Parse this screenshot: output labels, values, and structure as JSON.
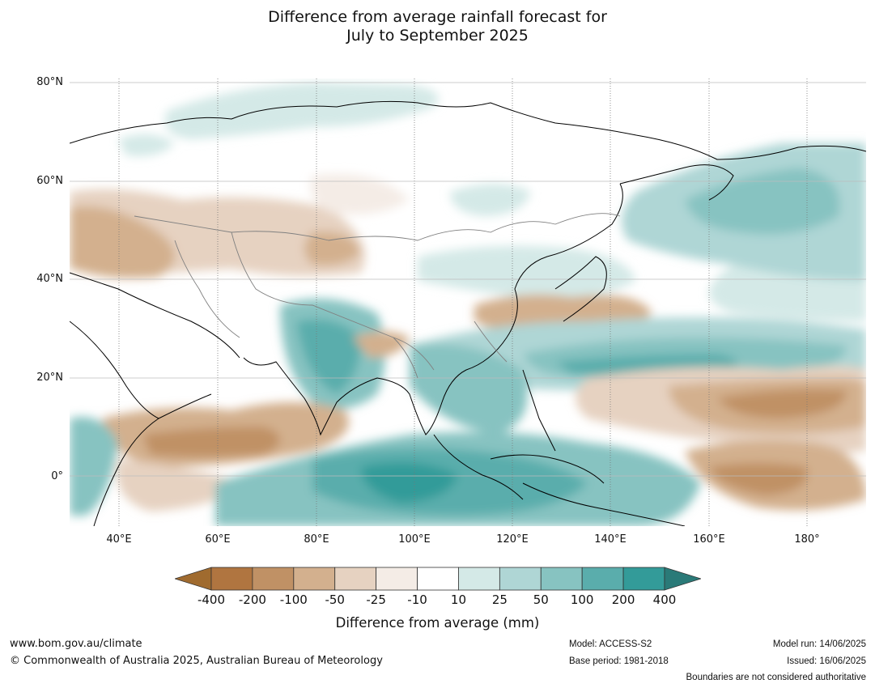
{
  "title": {
    "line1": "Difference from average rainfall forecast for",
    "line2": "July to September 2025"
  },
  "map": {
    "lat_labels": [
      "80°N",
      "60°N",
      "40°N",
      "20°N",
      "0°"
    ],
    "lon_labels": [
      "40°E",
      "60°E",
      "80°E",
      "100°E",
      "120°E",
      "140°E",
      "160°E",
      "180°"
    ],
    "lat_range": [
      -10,
      80
    ],
    "lon_range": [
      30,
      192
    ],
    "colors": {
      "land_outline": "#000000",
      "border": "#808080",
      "gridline": "#bdbdbd"
    }
  },
  "colorbar": {
    "ticks": [
      "-400",
      "-200",
      "-100",
      "-50",
      "-25",
      "-10",
      "10",
      "25",
      "50",
      "100",
      "200",
      "400"
    ],
    "colors": [
      "#a06b2f",
      "#b07540",
      "#c09165",
      "#d3b08e",
      "#e6d2c1",
      "#f4ece6",
      "#ffffff",
      "#d4e9e7",
      "#afd6d5",
      "#87c3c1",
      "#5aadac",
      "#339b99",
      "#2a7a78"
    ],
    "label": "Difference from average (mm)"
  },
  "footer": {
    "website": "www.bom.gov.au/climate",
    "copyright": "© Commonwealth of Australia 2025, Australian Bureau of Meteorology",
    "model": "Model: ACCESS-S2",
    "base_period": "Base period: 1981-2018",
    "model_run": "Model run: 14/06/2025",
    "issued": "Issued: 16/06/2025",
    "disclaimer": "Boundaries are not considered authoritative"
  }
}
